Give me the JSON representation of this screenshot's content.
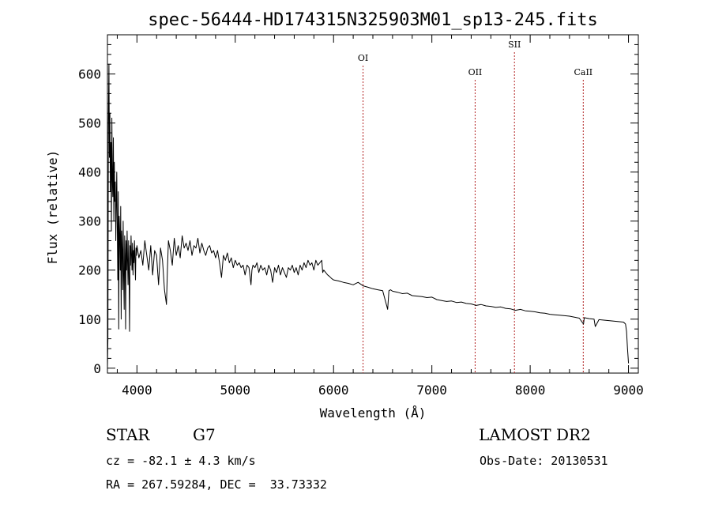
{
  "chart_data": {
    "type": "line",
    "title": "spec-56444-HD174315N325903M01_sp13-245.fits",
    "xlabel": "Wavelength (Å)",
    "ylabel": "Flux (relative)",
    "xlim": [
      3700,
      9100
    ],
    "ylim": [
      -10,
      680
    ],
    "xticks": [
      4000,
      5000,
      6000,
      7000,
      8000,
      9000
    ],
    "yticks": [
      0,
      100,
      200,
      300,
      400,
      500,
      600
    ],
    "line_color": "#000000",
    "marker_color": "#b22222",
    "spectral_lines": [
      {
        "label": "OI",
        "x": 6300
      },
      {
        "label": "OII",
        "x": 7440
      },
      {
        "label": "SII",
        "x": 7840
      },
      {
        "label": "CaII",
        "x": 8540
      }
    ],
    "series": [
      {
        "x": [
          3700,
          3705,
          3710,
          3715,
          3720,
          3725,
          3730,
          3735,
          3740,
          3745,
          3750,
          3755,
          3760,
          3765,
          3770,
          3775,
          3780,
          3785,
          3790,
          3795,
          3800,
          3805,
          3810,
          3815,
          3820,
          3825,
          3830,
          3835,
          3840,
          3845,
          3850,
          3855,
          3860,
          3865,
          3870,
          3875,
          3880,
          3885,
          3890,
          3895,
          3900,
          3905,
          3910,
          3915,
          3920,
          3925,
          3930,
          3935,
          3940,
          3945,
          3950,
          3955,
          3960,
          3965,
          3970,
          3975,
          3980,
          3985,
          3990,
          3995,
          4000,
          4020,
          4040,
          4060,
          4080,
          4100,
          4120,
          4140,
          4160,
          4180,
          4200,
          4220,
          4240,
          4260,
          4280,
          4300,
          4310,
          4320,
          4340,
          4360,
          4380,
          4400,
          4420,
          4440,
          4460,
          4480,
          4500,
          4520,
          4540,
          4560,
          4580,
          4600,
          4620,
          4640,
          4660,
          4680,
          4700,
          4720,
          4740,
          4760,
          4780,
          4800,
          4820,
          4840,
          4860,
          4880,
          4900,
          4920,
          4940,
          4960,
          4980,
          5000,
          5020,
          5040,
          5060,
          5080,
          5100,
          5120,
          5140,
          5160,
          5170,
          5180,
          5200,
          5220,
          5240,
          5260,
          5280,
          5300,
          5320,
          5340,
          5360,
          5380,
          5400,
          5420,
          5440,
          5460,
          5480,
          5500,
          5520,
          5540,
          5560,
          5580,
          5600,
          5620,
          5640,
          5660,
          5680,
          5700,
          5720,
          5740,
          5760,
          5780,
          5800,
          5820,
          5840,
          5860,
          5880,
          5890,
          5900,
          5920,
          5940,
          5960,
          5980,
          6000,
          6050,
          6100,
          6150,
          6200,
          6250,
          6300,
          6350,
          6400,
          6450,
          6500,
          6550,
          6563,
          6580,
          6600,
          6650,
          6700,
          6750,
          6800,
          6850,
          6900,
          6950,
          7000,
          7050,
          7100,
          7150,
          7200,
          7250,
          7300,
          7350,
          7400,
          7450,
          7500,
          7550,
          7600,
          7650,
          7700,
          7750,
          7800,
          7850,
          7900,
          7950,
          8000,
          8050,
          8100,
          8150,
          8200,
          8250,
          8300,
          8350,
          8400,
          8450,
          8500,
          8542,
          8550,
          8600,
          8650,
          8662,
          8700,
          8750,
          8800,
          8850,
          8900,
          8950,
          8970,
          8980,
          8990,
          9000
        ],
        "y": [
          0,
          60,
          500,
          620,
          430,
          520,
          360,
          460,
          280,
          510,
          390,
          350,
          470,
          300,
          420,
          340,
          380,
          260,
          330,
          400,
          300,
          180,
          360,
          80,
          310,
          270,
          200,
          330,
          100,
          280,
          240,
          160,
          300,
          190,
          120,
          270,
          230,
          80,
          260,
          200,
          280,
          220,
          170,
          260,
          180,
          75,
          250,
          210,
          270,
          230,
          200,
          255,
          190,
          240,
          215,
          260,
          225,
          180,
          245,
          230,
          250,
          225,
          240,
          210,
          260,
          230,
          200,
          250,
          190,
          240,
          230,
          170,
          245,
          220,
          160,
          130,
          200,
          260,
          240,
          210,
          265,
          230,
          250,
          225,
          270,
          245,
          255,
          240,
          260,
          230,
          250,
          245,
          265,
          235,
          255,
          240,
          230,
          245,
          250,
          235,
          240,
          225,
          240,
          215,
          185,
          230,
          220,
          235,
          215,
          225,
          205,
          220,
          210,
          215,
          205,
          210,
          190,
          210,
          205,
          170,
          200,
          210,
          205,
          215,
          195,
          210,
          200,
          205,
          190,
          210,
          200,
          175,
          205,
          195,
          210,
          190,
          205,
          195,
          185,
          205,
          200,
          210,
          195,
          205,
          190,
          210,
          200,
          215,
          205,
          220,
          210,
          215,
          200,
          220,
          210,
          215,
          220,
          195,
          200,
          195,
          190,
          187,
          183,
          180,
          178,
          175,
          173,
          170,
          175,
          168,
          165,
          162,
          160,
          158,
          120,
          158,
          160,
          157,
          155,
          152,
          153,
          148,
          147,
          146,
          144,
          145,
          140,
          138,
          136,
          137,
          134,
          135,
          132,
          131,
          128,
          130,
          127,
          126,
          124,
          125,
          122,
          121,
          118,
          120,
          117,
          116,
          115,
          113,
          112,
          110,
          109,
          108,
          107,
          106,
          104,
          102,
          90,
          103,
          101,
          100,
          85,
          99,
          98,
          97,
          96,
          95,
          94,
          90,
          75,
          40,
          10
        ]
      }
    ]
  },
  "info": {
    "object_class": "STAR",
    "subclass": "G7",
    "cz": "cz = -82.1 ± 4.3 km/s",
    "coords": "RA = 267.59284, DEC =  33.73332",
    "survey": "LAMOST DR2",
    "obs_date": "Obs-Date: 20130531"
  }
}
